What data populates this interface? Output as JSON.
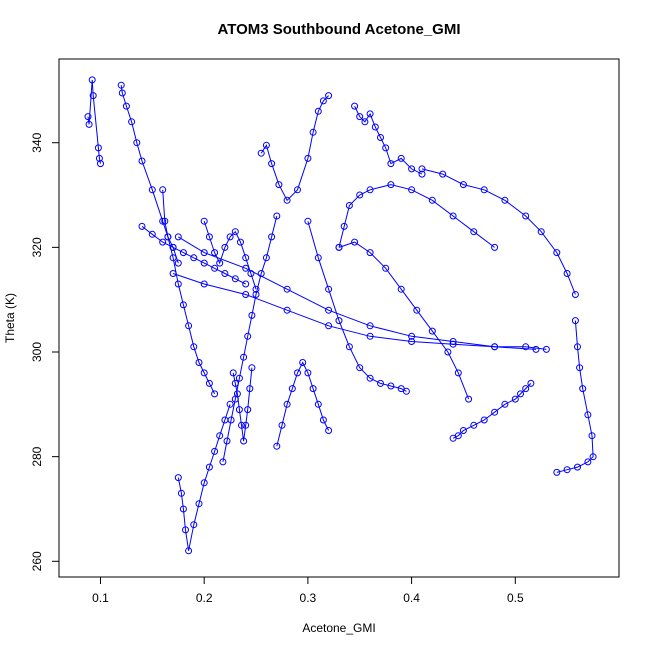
{
  "chart_data": {
    "type": "line",
    "title": "ATOM3 Southbound Acetone_GMI",
    "xlabel": "Acetone_GMI",
    "ylabel": "Theta (K)",
    "xlim": [
      0.06,
      0.6
    ],
    "ylim": [
      257,
      356
    ],
    "x_ticks": [
      0.1,
      0.2,
      0.3,
      0.4,
      0.5
    ],
    "x_tick_labels": [
      "0.1",
      "0.2",
      "0.3",
      "0.4",
      "0.5"
    ],
    "y_ticks": [
      260,
      280,
      300,
      320,
      340
    ],
    "y_tick_labels": [
      "260",
      "280",
      "300",
      "320",
      "340"
    ],
    "grid": false,
    "marker": "open-circle",
    "series_color": "#0000ff",
    "series": [
      {
        "name": "",
        "x": [
          0.088,
          0.089,
          0.092,
          0.093,
          0.098,
          0.099,
          0.1
        ],
        "y": [
          345.0,
          343.5,
          352.0,
          349.0,
          339.0,
          337.0,
          336.0
        ]
      },
      {
        "name": "",
        "x": [
          0.12,
          0.121,
          0.125,
          0.13,
          0.135,
          0.14,
          0.15,
          0.16,
          0.165,
          0.17,
          0.175
        ],
        "y": [
          351.0,
          349.5,
          347.0,
          344.0,
          340.0,
          336.5,
          331.0,
          325.0,
          322.0,
          320.0,
          317.0
        ]
      },
      {
        "name": "",
        "x": [
          0.16,
          0.162,
          0.165,
          0.17,
          0.175,
          0.18,
          0.185,
          0.19,
          0.195,
          0.2,
          0.205,
          0.21
        ],
        "y": [
          331.0,
          325.0,
          322.0,
          318.0,
          313.0,
          309.0,
          305.0,
          301.0,
          298.0,
          296.0,
          294.0,
          292.0
        ]
      },
      {
        "name": "",
        "x": [
          0.175,
          0.178,
          0.18,
          0.182,
          0.185,
          0.19,
          0.195,
          0.2,
          0.205,
          0.21,
          0.215,
          0.22,
          0.225
        ],
        "y": [
          276.0,
          273.0,
          270.0,
          266.0,
          262.0,
          267.0,
          271.0,
          275.0,
          278.0,
          281.0,
          284.0,
          287.0,
          290.0
        ]
      },
      {
        "name": "",
        "x": [
          0.218,
          0.222,
          0.226,
          0.23,
          0.234,
          0.238,
          0.242,
          0.246,
          0.25,
          0.255,
          0.26,
          0.265,
          0.27
        ],
        "y": [
          279.0,
          283.0,
          287.0,
          291.0,
          295.0,
          299.0,
          303.0,
          307.0,
          311.0,
          315.0,
          318.0,
          322.0,
          326.0
        ]
      },
      {
        "name": "",
        "x": [
          0.255,
          0.26,
          0.265,
          0.272,
          0.28,
          0.29,
          0.3,
          0.305,
          0.31,
          0.315,
          0.32
        ],
        "y": [
          338.0,
          339.5,
          336.0,
          332.0,
          329.0,
          331.0,
          337.0,
          342.0,
          346.0,
          348.0,
          349.0
        ]
      },
      {
        "name": "",
        "x": [
          0.345,
          0.35,
          0.355,
          0.36,
          0.365,
          0.37,
          0.375,
          0.38,
          0.39,
          0.4,
          0.41
        ],
        "y": [
          347.0,
          345.0,
          344.0,
          345.5,
          343.0,
          341.0,
          339.0,
          336.0,
          337.0,
          335.0,
          334.0
        ]
      },
      {
        "name": "",
        "x": [
          0.41,
          0.43,
          0.45,
          0.47,
          0.49,
          0.51,
          0.525,
          0.54,
          0.55,
          0.558
        ],
        "y": [
          335.0,
          334.0,
          332.0,
          331.0,
          329.0,
          326.0,
          323.0,
          319.0,
          315.0,
          311.0
        ]
      },
      {
        "name": "",
        "x": [
          0.558,
          0.56,
          0.562,
          0.565,
          0.57,
          0.574,
          0.575,
          0.57,
          0.56,
          0.55,
          0.54
        ],
        "y": [
          306.0,
          301.0,
          297.0,
          293.0,
          288.0,
          284.0,
          280.0,
          279.0,
          278.0,
          277.5,
          277.0
        ]
      },
      {
        "name": "",
        "x": [
          0.175,
          0.2,
          0.24,
          0.28,
          0.32,
          0.36,
          0.4,
          0.44,
          0.48,
          0.51,
          0.53
        ],
        "y": [
          322.0,
          319.0,
          316.0,
          312.0,
          308.0,
          305.0,
          303.0,
          302.0,
          301.0,
          301.0,
          300.5
        ]
      },
      {
        "name": "",
        "x": [
          0.17,
          0.2,
          0.24,
          0.28,
          0.32,
          0.36,
          0.4,
          0.44,
          0.48,
          0.52
        ],
        "y": [
          315.0,
          313.0,
          311.0,
          308.0,
          305.0,
          303.0,
          302.0,
          301.5,
          301.0,
          300.5
        ]
      },
      {
        "name": "",
        "x": [
          0.3,
          0.31,
          0.32,
          0.33,
          0.34,
          0.35,
          0.36,
          0.37,
          0.38,
          0.39,
          0.395
        ],
        "y": [
          325.0,
          318.0,
          312.0,
          306.0,
          301.0,
          297.0,
          295.0,
          294.0,
          293.5,
          293.0,
          292.5
        ]
      },
      {
        "name": "",
        "x": [
          0.33,
          0.345,
          0.36,
          0.375,
          0.39,
          0.405,
          0.42,
          0.435,
          0.445,
          0.455
        ],
        "y": [
          320.0,
          321.0,
          319.0,
          316.0,
          312.0,
          308.0,
          304.0,
          300.0,
          296.0,
          291.0
        ]
      },
      {
        "name": "",
        "x": [
          0.44,
          0.445,
          0.45,
          0.46,
          0.47,
          0.48,
          0.49,
          0.5,
          0.505,
          0.51,
          0.515
        ],
        "y": [
          283.5,
          284.0,
          285.0,
          286.0,
          287.0,
          288.5,
          290.0,
          291.0,
          292.0,
          293.0,
          294.0
        ]
      },
      {
        "name": "",
        "x": [
          0.27,
          0.275,
          0.28,
          0.285,
          0.29,
          0.295,
          0.3,
          0.305,
          0.31,
          0.315,
          0.32
        ],
        "y": [
          282.0,
          286.0,
          290.0,
          293.0,
          296.0,
          298.0,
          296.0,
          293.0,
          290.0,
          287.0,
          285.0
        ]
      },
      {
        "name": "",
        "x": [
          0.33,
          0.335,
          0.34,
          0.35,
          0.36,
          0.38,
          0.4,
          0.42,
          0.44,
          0.46,
          0.48
        ],
        "y": [
          320.0,
          324.0,
          328.0,
          330.0,
          331.0,
          332.0,
          331.0,
          329.0,
          326.0,
          323.0,
          320.0
        ]
      },
      {
        "name": "",
        "x": [
          0.14,
          0.15,
          0.16,
          0.17,
          0.18,
          0.19,
          0.2,
          0.21,
          0.22,
          0.23,
          0.24
        ],
        "y": [
          324.0,
          322.5,
          321.0,
          320.0,
          319.0,
          318.0,
          317.0,
          316.0,
          315.0,
          314.0,
          313.0
        ]
      },
      {
        "name": "",
        "x": [
          0.2,
          0.205,
          0.21,
          0.215,
          0.22,
          0.225,
          0.23,
          0.235,
          0.24,
          0.245,
          0.25
        ],
        "y": [
          325.0,
          322.0,
          319.0,
          317.0,
          320.0,
          322.0,
          323.0,
          321.0,
          318.0,
          315.0,
          312.0
        ]
      },
      {
        "name": "",
        "x": [
          0.228,
          0.23,
          0.232,
          0.234,
          0.236,
          0.238,
          0.24,
          0.242,
          0.244,
          0.246
        ],
        "y": [
          296.0,
          294.0,
          292.0,
          289.0,
          286.0,
          283.0,
          286.0,
          289.0,
          293.0,
          297.0
        ]
      }
    ]
  }
}
